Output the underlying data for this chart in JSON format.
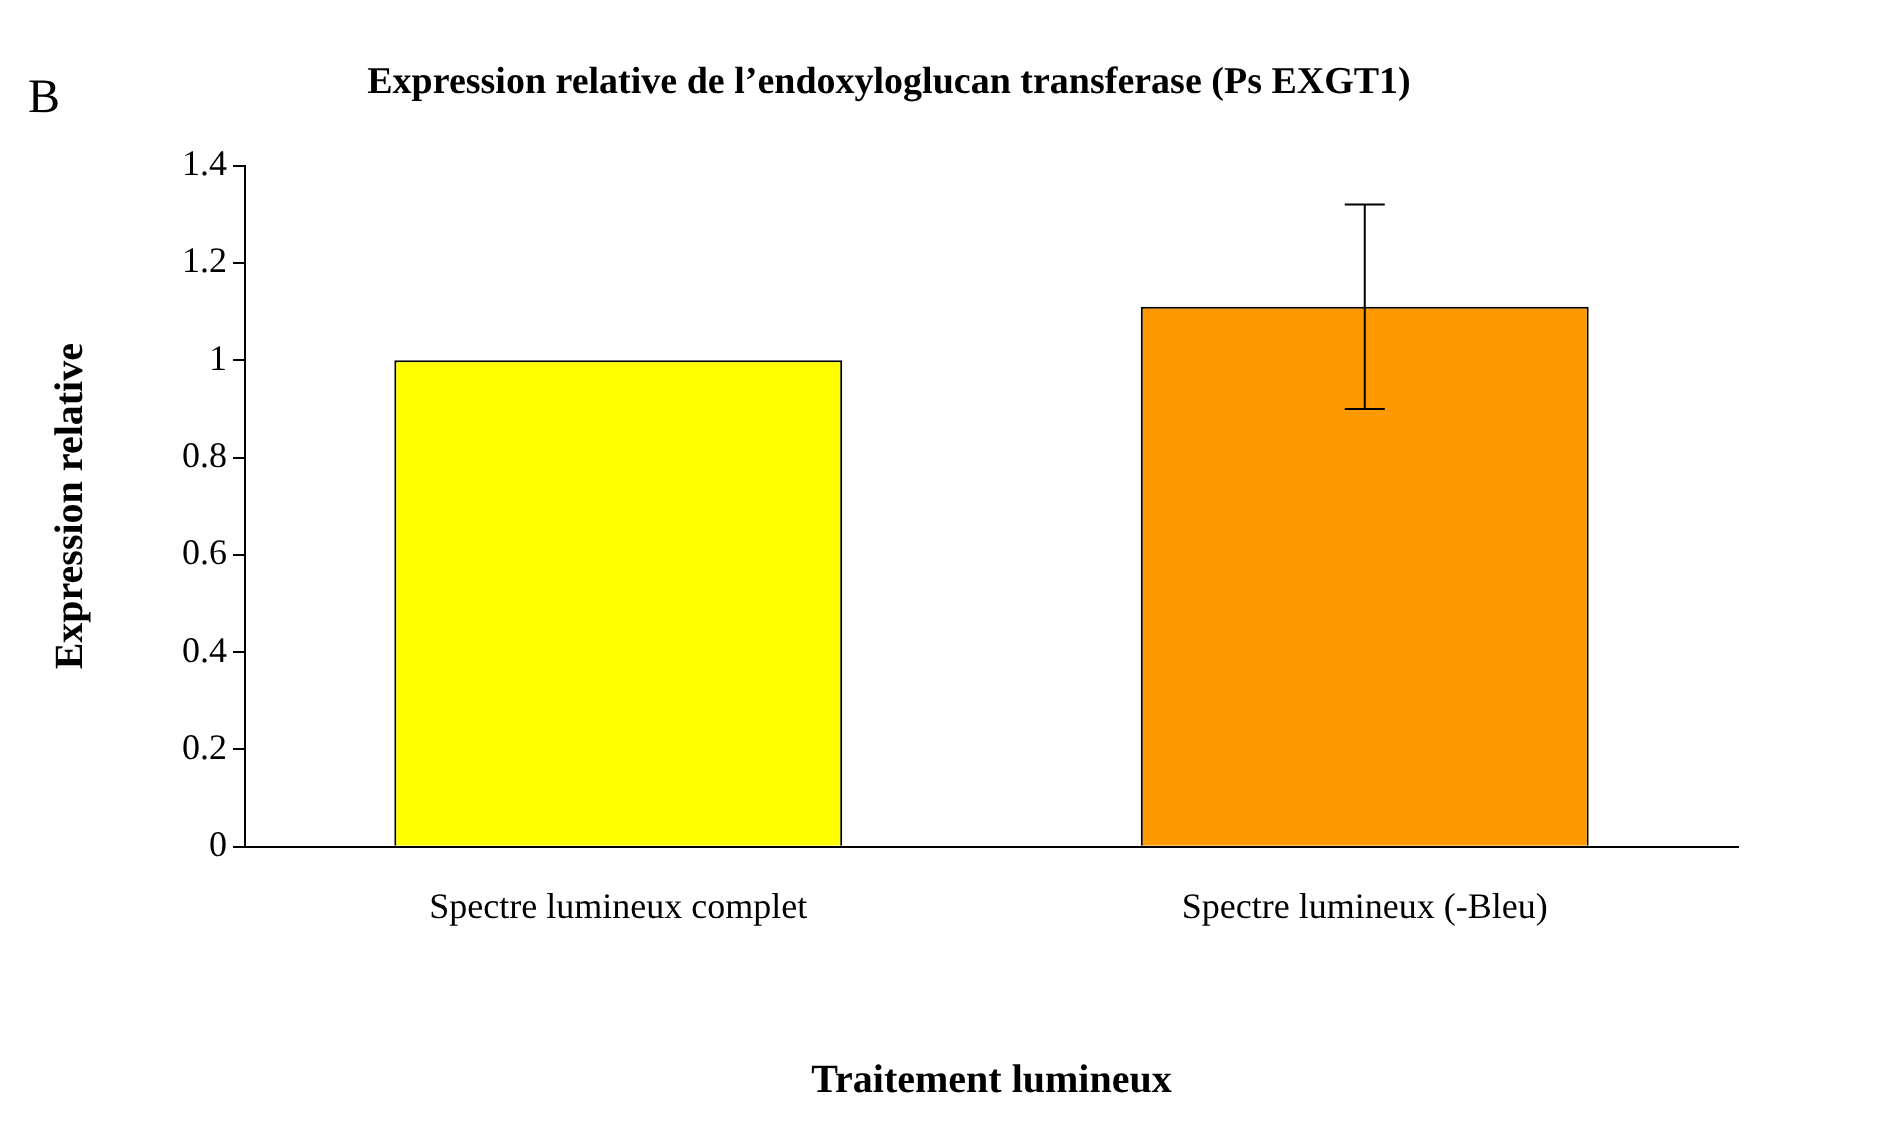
{
  "chart_data": {
    "type": "bar",
    "title": "Expression relative de l’endoxyloglucan transferase (Ps EXGT1)",
    "xlabel": "Traitement lumineux",
    "ylabel": "Expression relative",
    "annotations": [
      "B"
    ],
    "categories": [
      "Spectre lumineux complet",
      "Spectre lumineux (-Bleu)"
    ],
    "values": [
      1,
      1.11
    ],
    "colors": [
      "#ffff00",
      "#ff9900"
    ],
    "errors": [
      null,
      0.21
    ],
    "ylim": [
      0,
      1.4
    ],
    "yticks": [
      0,
      0.2,
      0.4,
      0.6,
      0.8,
      1,
      1.2,
      1.4
    ],
    "grid": false,
    "legend": false
  }
}
